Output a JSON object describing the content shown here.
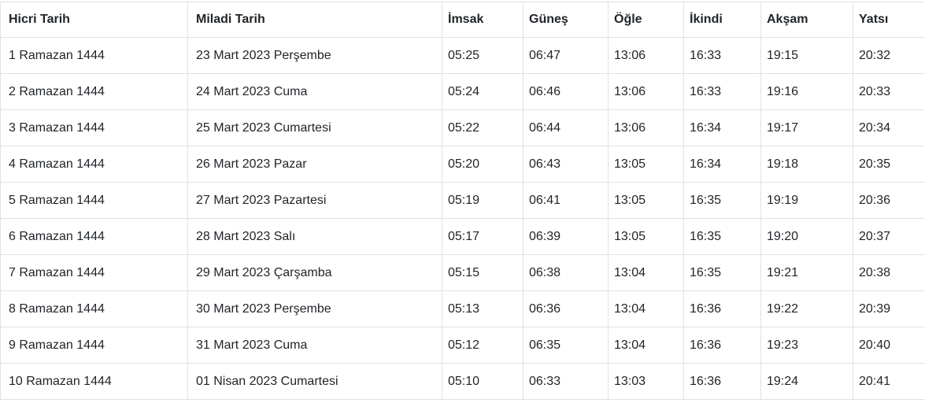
{
  "table": {
    "columns": [
      {
        "key": "hicri",
        "label": "Hicri Tarih"
      },
      {
        "key": "miladi",
        "label": "Miladi Tarih"
      },
      {
        "key": "imsak",
        "label": "İmsak"
      },
      {
        "key": "gunes",
        "label": "Güneş"
      },
      {
        "key": "ogle",
        "label": "Öğle"
      },
      {
        "key": "ikindi",
        "label": "İkindi"
      },
      {
        "key": "aksam",
        "label": "Akşam"
      },
      {
        "key": "yatsi",
        "label": "Yatsı"
      }
    ],
    "rows": [
      [
        "1 Ramazan 1444",
        "23 Mart 2023 Perşembe",
        "05:25",
        "06:47",
        "13:06",
        "16:33",
        "19:15",
        "20:32"
      ],
      [
        "2 Ramazan 1444",
        "24 Mart 2023 Cuma",
        "05:24",
        "06:46",
        "13:06",
        "16:33",
        "19:16",
        "20:33"
      ],
      [
        "3 Ramazan 1444",
        "25 Mart 2023 Cumartesi",
        "05:22",
        "06:44",
        "13:06",
        "16:34",
        "19:17",
        "20:34"
      ],
      [
        "4 Ramazan 1444",
        "26 Mart 2023 Pazar",
        "05:20",
        "06:43",
        "13:05",
        "16:34",
        "19:18",
        "20:35"
      ],
      [
        "5 Ramazan 1444",
        "27 Mart 2023 Pazartesi",
        "05:19",
        "06:41",
        "13:05",
        "16:35",
        "19:19",
        "20:36"
      ],
      [
        "6 Ramazan 1444",
        "28 Mart 2023 Salı",
        "05:17",
        "06:39",
        "13:05",
        "16:35",
        "19:20",
        "20:37"
      ],
      [
        "7 Ramazan 1444",
        "29 Mart 2023 Çarşamba",
        "05:15",
        "06:38",
        "13:04",
        "16:35",
        "19:21",
        "20:38"
      ],
      [
        "8 Ramazan 1444",
        "30 Mart 2023 Perşembe",
        "05:13",
        "06:36",
        "13:04",
        "16:36",
        "19:22",
        "20:39"
      ],
      [
        "9 Ramazan 1444",
        "31 Mart 2023 Cuma",
        "05:12",
        "06:35",
        "13:04",
        "16:36",
        "19:23",
        "20:40"
      ],
      [
        "10 Ramazan 1444",
        "01 Nisan 2023 Cumartesi",
        "05:10",
        "06:33",
        "13:03",
        "16:36",
        "19:24",
        "20:41"
      ]
    ],
    "colors": {
      "border": "#dee2e6",
      "text": "#212529",
      "background": "#ffffff"
    }
  }
}
